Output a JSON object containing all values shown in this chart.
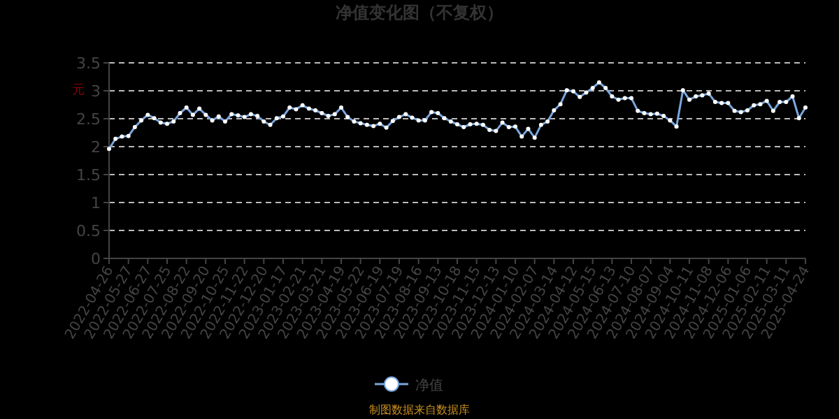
{
  "chart_data": {
    "type": "line",
    "title": "净值变化图（不复权）",
    "ylabel": "元",
    "categories": [
      "2022-04-26",
      null,
      null,
      "2022-05-27",
      null,
      null,
      "2022-06-27",
      null,
      null,
      "2022-07-25",
      null,
      null,
      "2022-08-22",
      null,
      null,
      "2022-09-20",
      null,
      null,
      "2022-10-25",
      null,
      null,
      "2022-11-22",
      null,
      null,
      "2022-12-20",
      null,
      null,
      "2023-01-17",
      null,
      null,
      "2023-02-21",
      null,
      null,
      "2023-03-21",
      null,
      null,
      "2023-04-19",
      null,
      null,
      "2023-05-22",
      null,
      null,
      "2023-06-19",
      null,
      null,
      "2023-07-19",
      null,
      null,
      "2023-08-16",
      null,
      null,
      "2023-09-13",
      null,
      null,
      "2023-10-18",
      null,
      null,
      "2023-11-15",
      null,
      null,
      "2023-12-13",
      null,
      null,
      "2024-01-10",
      null,
      null,
      "2024-02-07",
      null,
      null,
      "2024-03-14",
      null,
      null,
      "2024-04-12",
      null,
      null,
      "2024-05-15",
      null,
      null,
      "2024-06-13",
      null,
      null,
      "2024-07-10",
      null,
      null,
      "2024-08-07",
      null,
      null,
      "2024-09-04",
      null,
      null,
      "2024-10-11",
      null,
      null,
      "2024-11-08",
      null,
      null,
      "2024-12-06",
      null,
      null,
      "2025-01-06",
      null,
      null,
      "2025-02-11",
      null,
      null,
      "2025-03-11",
      null,
      null,
      "2025-04-24"
    ],
    "series": [
      {
        "name": "净值",
        "color": "#7aa6dc",
        "values": [
          1.96,
          2.14,
          2.18,
          2.19,
          2.35,
          2.47,
          2.57,
          2.51,
          2.43,
          2.41,
          2.45,
          2.6,
          2.7,
          2.57,
          2.68,
          2.57,
          2.47,
          2.54,
          2.45,
          2.58,
          2.56,
          2.53,
          2.58,
          2.55,
          2.45,
          2.39,
          2.51,
          2.54,
          2.7,
          2.67,
          2.74,
          2.68,
          2.65,
          2.6,
          2.55,
          2.58,
          2.7,
          2.53,
          2.45,
          2.42,
          2.39,
          2.37,
          2.41,
          2.34,
          2.46,
          2.53,
          2.58,
          2.52,
          2.47,
          2.47,
          2.62,
          2.6,
          2.51,
          2.45,
          2.4,
          2.35,
          2.4,
          2.41,
          2.39,
          2.3,
          2.28,
          2.43,
          2.35,
          2.36,
          2.18,
          2.32,
          2.16,
          2.39,
          2.45,
          2.65,
          2.76,
          3.01,
          2.99,
          2.89,
          2.97,
          3.05,
          3.15,
          3.05,
          2.9,
          2.84,
          2.87,
          2.87,
          2.64,
          2.6,
          2.58,
          2.59,
          2.55,
          2.47,
          2.36,
          3.01,
          2.84,
          2.9,
          2.92,
          2.95,
          2.8,
          2.78,
          2.78,
          2.64,
          2.62,
          2.65,
          2.74,
          2.76,
          2.82,
          2.64,
          2.8,
          2.8,
          2.9,
          2.51,
          2.7
        ]
      }
    ],
    "ylim": [
      0,
      3.5
    ],
    "yticks": [
      0,
      0.5,
      1,
      1.5,
      2,
      2.5,
      3,
      3.5
    ],
    "grid": "y",
    "legend": "bottom",
    "marker": "circle",
    "annotations": [
      "制图数据来自数据库"
    ]
  }
}
